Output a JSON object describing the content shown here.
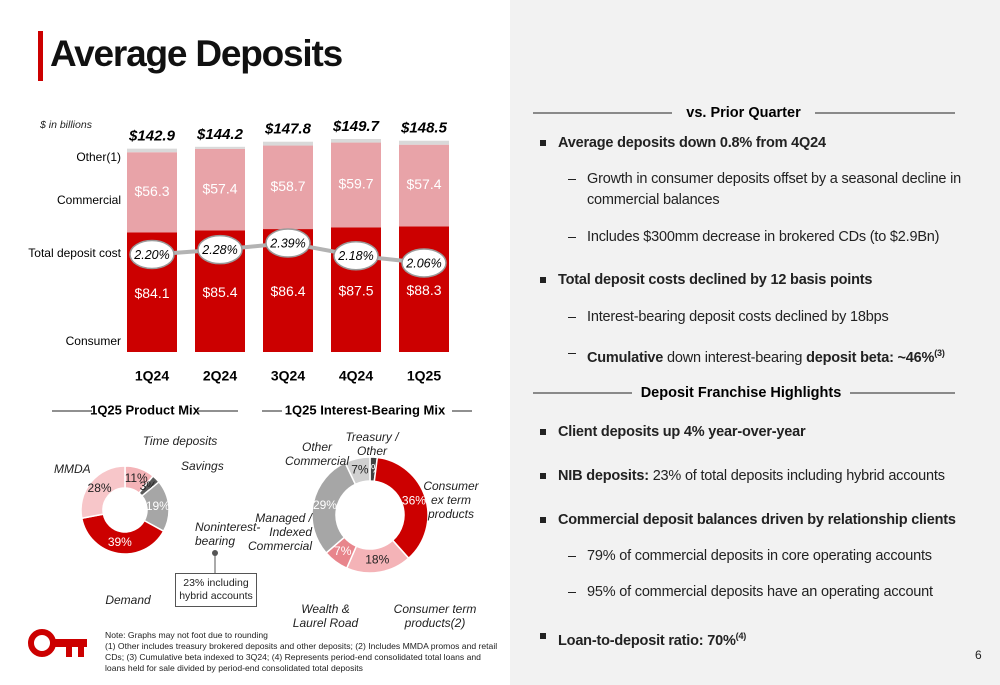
{
  "title": "Average Deposits",
  "page_number": "6",
  "chart_data": [
    {
      "type": "stacked-bar",
      "note": "$ in billions",
      "categories": [
        "1Q24",
        "2Q24",
        "3Q24",
        "4Q24",
        "1Q25"
      ],
      "totals": [
        142.9,
        144.2,
        147.8,
        149.7,
        148.5
      ],
      "totals_labels": [
        "$142.9",
        "$144.2",
        "$147.8",
        "$149.7",
        "$148.5"
      ],
      "series": [
        {
          "name": "Consumer",
          "color": "#cc0000",
          "values": [
            84.1,
            85.4,
            86.4,
            87.5,
            88.3
          ],
          "value_labels": [
            "$84.1",
            "$85.4",
            "$86.4",
            "$87.5",
            "$88.3"
          ]
        },
        {
          "name": "Commercial",
          "color": "#e8a3a8",
          "values": [
            56.3,
            57.4,
            58.7,
            59.7,
            57.4
          ],
          "value_labels": [
            "$56.3",
            "$57.4",
            "$58.7",
            "$59.7",
            "$57.4"
          ]
        },
        {
          "name": "Other(1)",
          "color": "#d9d9d9",
          "values": [
            2.5,
            1.4,
            2.7,
            2.5,
            2.8
          ]
        },
        {
          "name": "Total deposit cost",
          "type": "line",
          "color": "#b3b3b3",
          "values": [
            2.2,
            2.28,
            2.39,
            2.18,
            2.06
          ],
          "value_labels": [
            "2.20%",
            "2.28%",
            "2.39%",
            "2.18%",
            "2.06%"
          ]
        }
      ]
    },
    {
      "type": "donut",
      "title": "1Q25 Product Mix",
      "categories": [
        "Time deposits",
        "Savings",
        "Noninterest-bearing",
        "Demand",
        "MMDA"
      ],
      "values": [
        11,
        3,
        19,
        39,
        28
      ],
      "value_labels": [
        "11%",
        "3%",
        "19%",
        "39%",
        "28%"
      ],
      "colors": [
        "#f4b3b7",
        "#595959",
        "#a6a6a6",
        "#cc0000",
        "#f7c6c9"
      ],
      "callout": "23% including hybrid accounts"
    },
    {
      "type": "donut",
      "title": "1Q25 Interest-Bearing Mix",
      "categories": [
        "Treasury / Other",
        "Consumer ex term products",
        "Consumer term products(2)",
        "Wealth & Laurel Road",
        "Managed / Indexed Commercial",
        "Other Commercial"
      ],
      "values": [
        2,
        36,
        18,
        7,
        29,
        7
      ],
      "value_labels": [
        "2%",
        "36%",
        "18%",
        "7%",
        "29%",
        "7%"
      ],
      "colors": [
        "#404040",
        "#cc0000",
        "#f4b3b7",
        "#e8858c",
        "#a6a6a6",
        "#d0d0d0"
      ]
    }
  ],
  "panel": {
    "sections": [
      {
        "heading": "vs. Prior Quarter",
        "items": [
          {
            "level": 1,
            "runs": [
              {
                "text": "Average deposits down 0.8% from 4Q24",
                "bold": true
              }
            ]
          },
          {
            "level": 2,
            "runs": [
              {
                "text": "Growth in consumer deposits offset by a seasonal decline in commercial balances"
              }
            ]
          },
          {
            "level": 2,
            "runs": [
              {
                "text": "Includes $300mm decrease in brokered CDs (to $2.9Bn)"
              }
            ]
          },
          {
            "level": 1,
            "runs": [
              {
                "text": "Total deposit costs declined by 12 basis points",
                "bold": true
              }
            ]
          },
          {
            "level": 2,
            "runs": [
              {
                "text": "Interest-bearing deposit costs declined by 18bps"
              }
            ]
          },
          {
            "level": 2,
            "runs": [
              {
                "text": "Cumulative",
                "bold": true
              },
              {
                "text": " down interest-bearing "
              },
              {
                "text": "deposit beta: ~46%",
                "bold": true
              },
              {
                "text": "(3)",
                "bold": true,
                "sup": true
              }
            ]
          }
        ]
      },
      {
        "heading": "Deposit Franchise Highlights",
        "items": [
          {
            "level": 1,
            "runs": [
              {
                "text": "Client deposits up 4% year-over-year",
                "bold": true
              }
            ]
          },
          {
            "level": 1,
            "runs": [
              {
                "text": "NIB deposits:",
                "bold": true
              },
              {
                "text": " 23% of total deposits including hybrid accounts"
              }
            ]
          },
          {
            "level": 1,
            "runs": [
              {
                "text": "Commercial deposit balances driven by relationship clients",
                "bold": true
              }
            ]
          },
          {
            "level": 2,
            "runs": [
              {
                "text": "79% of commercial deposits in core operating accounts"
              }
            ]
          },
          {
            "level": 2,
            "runs": [
              {
                "text": "95% of commercial deposits have an operating account"
              }
            ]
          },
          {
            "level": 1,
            "runs": [
              {
                "text": "Loan-to-deposit ratio: 70%",
                "bold": true
              },
              {
                "text": "(4)",
                "bold": true,
                "sup": true
              }
            ]
          }
        ]
      }
    ]
  },
  "footnotes": [
    "Note: Graphs may not foot due to rounding",
    "(1) Other includes treasury brokered deposits and other deposits; (2) Includes MMDA promos and retail CDs; (3) Cumulative beta indexed to 3Q24; (4) Represents period-end consolidated total loans and loans held for sale divided by period-end consolidated total deposits"
  ]
}
